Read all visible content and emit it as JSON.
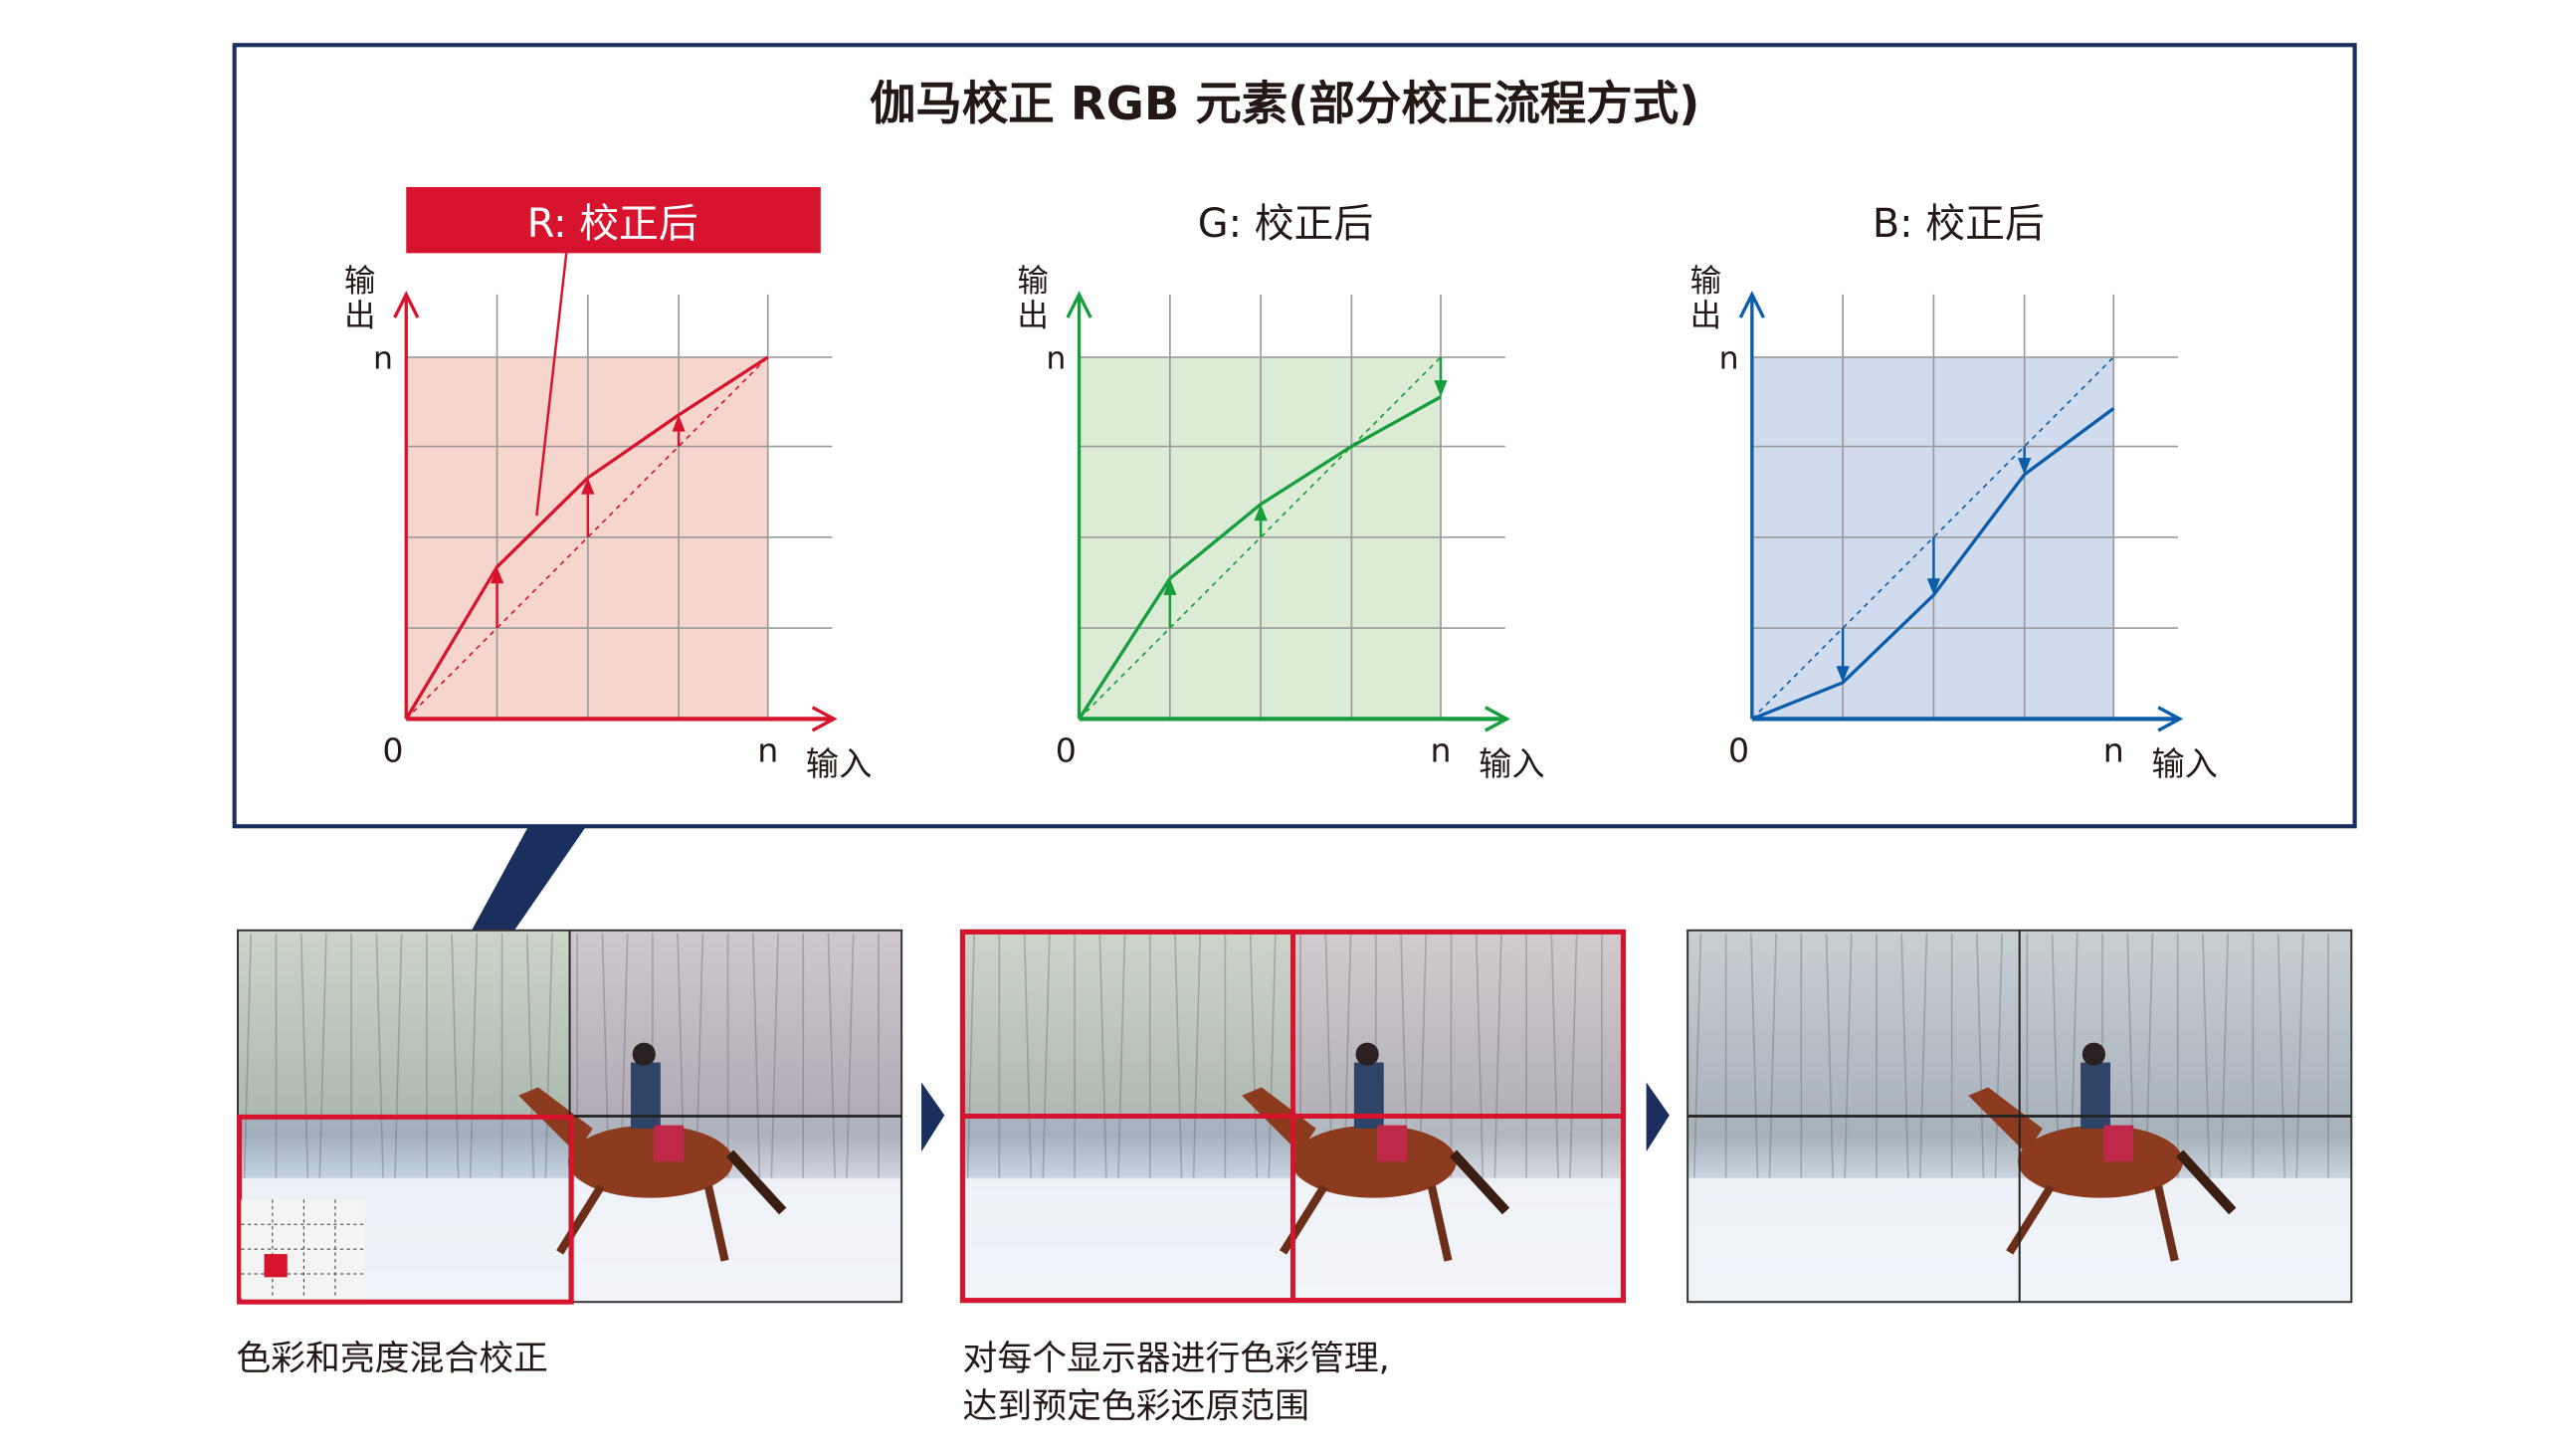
{
  "title": "伽马校正 RGB 元素(部分校正流程方式)",
  "charts": [
    {
      "label": "R: 校正后",
      "y_axis_label": [
        "输",
        "出"
      ],
      "x_axis_label": "输入",
      "origin_label": "0",
      "x_max_label": "n",
      "y_max_label": "n",
      "color": "#d7132d",
      "fill": "#f6d6cc",
      "correction": "up"
    },
    {
      "label": "G: 校正后",
      "y_axis_label": [
        "输",
        "出"
      ],
      "x_axis_label": "输入",
      "origin_label": "0",
      "x_max_label": "n",
      "y_max_label": "n",
      "color": "#169d3c",
      "fill": "#dcebd5",
      "correction": "mixed"
    },
    {
      "label": "B: 校正后",
      "y_axis_label": [
        "输",
        "出"
      ],
      "x_axis_label": "输入",
      "origin_label": "0",
      "x_max_label": "n",
      "y_max_label": "n",
      "color": "#0b5cab",
      "fill": "#d0dced",
      "correction": "down"
    }
  ],
  "captions": {
    "panel1": "色彩和亮度混合校正",
    "panel2_line1": "对每个显示器进行色彩管理,",
    "panel2_line2": "达到预定色彩还原范围"
  },
  "colors": {
    "frame": "#1b2f5e",
    "highlight": "#d7132d"
  }
}
